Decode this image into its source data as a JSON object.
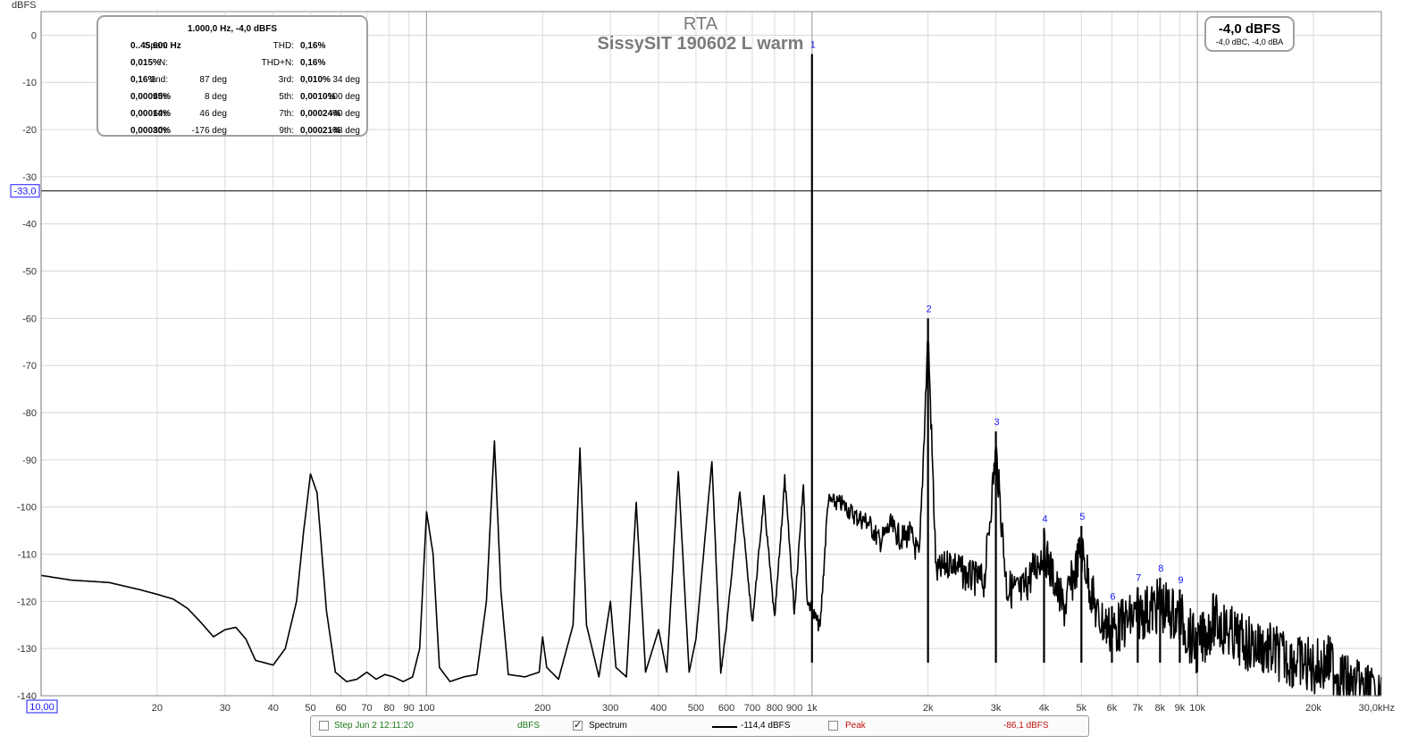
{
  "chart_data": {
    "type": "line",
    "title": "RTA",
    "subtitle": "SissySIT 190602 L warm",
    "ylabel": "dBFS",
    "xlabel": "",
    "x_unit": "kHz",
    "xscale": "log",
    "xlim": [
      10,
      30000
    ],
    "ylim": [
      -140,
      5
    ],
    "grid": true,
    "y_ticks": [
      "0",
      "-10",
      "-20",
      "-30",
      "-40",
      "-50",
      "-60",
      "-70",
      "-80",
      "-90",
      "-100",
      "-110",
      "-120",
      "-130",
      "-140"
    ],
    "x_tick_labels": [
      {
        "v": 20,
        "t": "20"
      },
      {
        "v": 30,
        "t": "30"
      },
      {
        "v": 40,
        "t": "40"
      },
      {
        "v": 50,
        "t": "50"
      },
      {
        "v": 60,
        "t": "60"
      },
      {
        "v": 70,
        "t": "70"
      },
      {
        "v": 80,
        "t": "80"
      },
      {
        "v": 90,
        "t": "90"
      },
      {
        "v": 100,
        "t": "100"
      },
      {
        "v": 200,
        "t": "200"
      },
      {
        "v": 300,
        "t": "300"
      },
      {
        "v": 400,
        "t": "400"
      },
      {
        "v": 500,
        "t": "500"
      },
      {
        "v": 600,
        "t": "600"
      },
      {
        "v": 700,
        "t": "700"
      },
      {
        "v": 800,
        "t": "800"
      },
      {
        "v": 900,
        "t": "900"
      },
      {
        "v": 1000,
        "t": "1k"
      },
      {
        "v": 2000,
        "t": "2k"
      },
      {
        "v": 3000,
        "t": "3k"
      },
      {
        "v": 4000,
        "t": "4k"
      },
      {
        "v": 5000,
        "t": "5k"
      },
      {
        "v": 6000,
        "t": "6k"
      },
      {
        "v": 7000,
        "t": "7k"
      },
      {
        "v": 8000,
        "t": "8k"
      },
      {
        "v": 9000,
        "t": "9k"
      },
      {
        "v": 10000,
        "t": "10k"
      },
      {
        "v": 20000,
        "t": "20k"
      },
      {
        "v": 30000,
        "t": "30,0kHz"
      }
    ],
    "cursor_x_label": "10,00",
    "cursor_y": -33,
    "cursor_y_label": "-33,0",
    "harmonic_markers": [
      {
        "n": "1",
        "freq": 1000,
        "level": -4.0
      },
      {
        "n": "2",
        "freq": 2000,
        "level": -60.0
      },
      {
        "n": "3",
        "freq": 3000,
        "level": -84.0
      },
      {
        "n": "4",
        "freq": 4000,
        "level": -104.5
      },
      {
        "n": "5",
        "freq": 5000,
        "level": -104.0
      },
      {
        "n": "6",
        "freq": 6000,
        "level": -121.0
      },
      {
        "n": "7",
        "freq": 7000,
        "level": -117.0
      },
      {
        "n": "8",
        "freq": 8000,
        "level": -115.0
      },
      {
        "n": "9",
        "freq": 9000,
        "level": -117.5
      }
    ],
    "series": [
      {
        "color": "#000000",
        "baseline": [
          [
            10,
            -114.5
          ],
          [
            12,
            -115.5
          ],
          [
            15,
            -116
          ],
          [
            18,
            -117.5
          ],
          [
            20,
            -118.5
          ],
          [
            22,
            -119.5
          ],
          [
            24,
            -121.5
          ],
          [
            26,
            -124.5
          ],
          [
            28,
            -127.5
          ],
          [
            30,
            -126
          ],
          [
            32,
            -125.5
          ],
          [
            34,
            -128
          ],
          [
            36,
            -132.5
          ],
          [
            40,
            -133.5
          ],
          [
            43,
            -130
          ],
          [
            46,
            -120
          ],
          [
            48,
            -105
          ],
          [
            50,
            -93
          ],
          [
            52,
            -97
          ],
          [
            55,
            -122
          ],
          [
            58,
            -135
          ],
          [
            62,
            -137
          ],
          [
            66,
            -136.5
          ],
          [
            70,
            -135
          ],
          [
            74,
            -136.5
          ],
          [
            78,
            -135.5
          ],
          [
            82,
            -136
          ],
          [
            87,
            -137
          ],
          [
            92,
            -136
          ],
          [
            96,
            -130
          ],
          [
            100,
            -101
          ],
          [
            104,
            -110
          ],
          [
            108,
            -134
          ],
          [
            115,
            -137
          ],
          [
            125,
            -136
          ],
          [
            135,
            -135.5
          ],
          [
            143,
            -120
          ],
          [
            150,
            -86
          ],
          [
            156,
            -118
          ],
          [
            163,
            -135.5
          ],
          [
            180,
            -136
          ],
          [
            196,
            -135
          ],
          [
            200,
            -127.5
          ],
          [
            205,
            -134
          ],
          [
            220,
            -136.5
          ],
          [
            240,
            -125
          ],
          [
            250,
            -87.5
          ],
          [
            260,
            -125
          ],
          [
            280,
            -136
          ],
          [
            300,
            -120
          ],
          [
            310,
            -134
          ],
          [
            330,
            -136
          ],
          [
            350,
            -99
          ],
          [
            370,
            -135
          ],
          [
            400,
            -126
          ],
          [
            420,
            -135
          ],
          [
            450,
            -92.5
          ],
          [
            480,
            -135
          ],
          [
            500,
            -128
          ],
          [
            550,
            -90
          ],
          [
            580,
            -135
          ],
          [
            600,
            -125
          ],
          [
            650,
            -96
          ],
          [
            700,
            -124
          ],
          [
            750,
            -97.5
          ],
          [
            800,
            -123
          ],
          [
            850,
            -93
          ],
          [
            900,
            -121
          ],
          [
            950,
            -93
          ],
          [
            970,
            -118
          ],
          [
            1050,
            -124
          ],
          [
            1100,
            -97
          ],
          [
            1200,
            -97.5
          ],
          [
            1300,
            -100
          ],
          [
            1400,
            -101
          ],
          [
            1500,
            -105
          ],
          [
            1600,
            -101.5
          ],
          [
            1700,
            -104
          ],
          [
            1800,
            -103
          ],
          [
            1900,
            -108
          ],
          [
            2000,
            -60
          ],
          [
            2100,
            -111
          ],
          [
            2300,
            -108
          ],
          [
            2500,
            -111
          ],
          [
            2800,
            -112
          ],
          [
            3000,
            -84
          ],
          [
            3200,
            -113
          ],
          [
            3500,
            -114
          ],
          [
            4000,
            -104.5
          ],
          [
            4500,
            -117
          ],
          [
            5000,
            -104
          ],
          [
            5500,
            -118
          ],
          [
            6000,
            -121
          ],
          [
            7000,
            -117
          ],
          [
            8000,
            -115
          ],
          [
            9000,
            -117.5
          ],
          [
            10000,
            -124
          ],
          [
            11000,
            -118
          ],
          [
            13000,
            -122.5
          ],
          [
            15000,
            -124
          ],
          [
            17000,
            -126
          ],
          [
            20000,
            -128
          ],
          [
            22000,
            -127
          ],
          [
            25000,
            -132
          ],
          [
            28000,
            -133
          ],
          [
            30000,
            -136
          ]
        ]
      }
    ]
  },
  "info_box": {
    "title": "1.000,0 Hz, -4,0 dBFS",
    "span_label": "Span:",
    "span_value": "0..45.600 Hz",
    "thd_label": "THD:",
    "thd_value": "0,16%",
    "n_label": "N:",
    "n_value": "0,015%",
    "thdn_label": "THD+N:",
    "thdn_value": "0,16%",
    "rows": [
      {
        "l1": "2nd:",
        "v1": "0,16%",
        "p1": "87 deg",
        "l2": "3rd:",
        "v2": "0,010%",
        "p2": "34 deg"
      },
      {
        "l1": "4th:",
        "v1": "0,00095%",
        "p1": "8 deg",
        "l2": "5th:",
        "v2": "0,0010%",
        "p2": "-100 deg"
      },
      {
        "l1": "6th:",
        "v1": "0,00014%",
        "p1": "46 deg",
        "l2": "7th:",
        "v2": "0,00024%",
        "p2": "-40 deg"
      },
      {
        "l1": "8th:",
        "v1": "0,00030%",
        "p1": "-176 deg",
        "l2": "9th:",
        "v2": "0,00021%",
        "p2": "-48 deg"
      }
    ]
  },
  "level_box": {
    "main": "-4,0 dBFS",
    "sub": "-4,0 dBC, -4,0 dBA"
  },
  "legend": {
    "name": "Step Jun 2 12:11:20",
    "unit": "dBFS",
    "spectrum_label": "Spectrum",
    "spectrum_checked": true,
    "spectrum_value": "-114,4 dBFS",
    "peak_label": "Peak",
    "peak_checked": false,
    "peak_value": "-86,1 dBFS",
    "colors": {
      "name": "#1e7a1e",
      "unit": "#1e7a1e",
      "peak": "#c01010"
    }
  }
}
